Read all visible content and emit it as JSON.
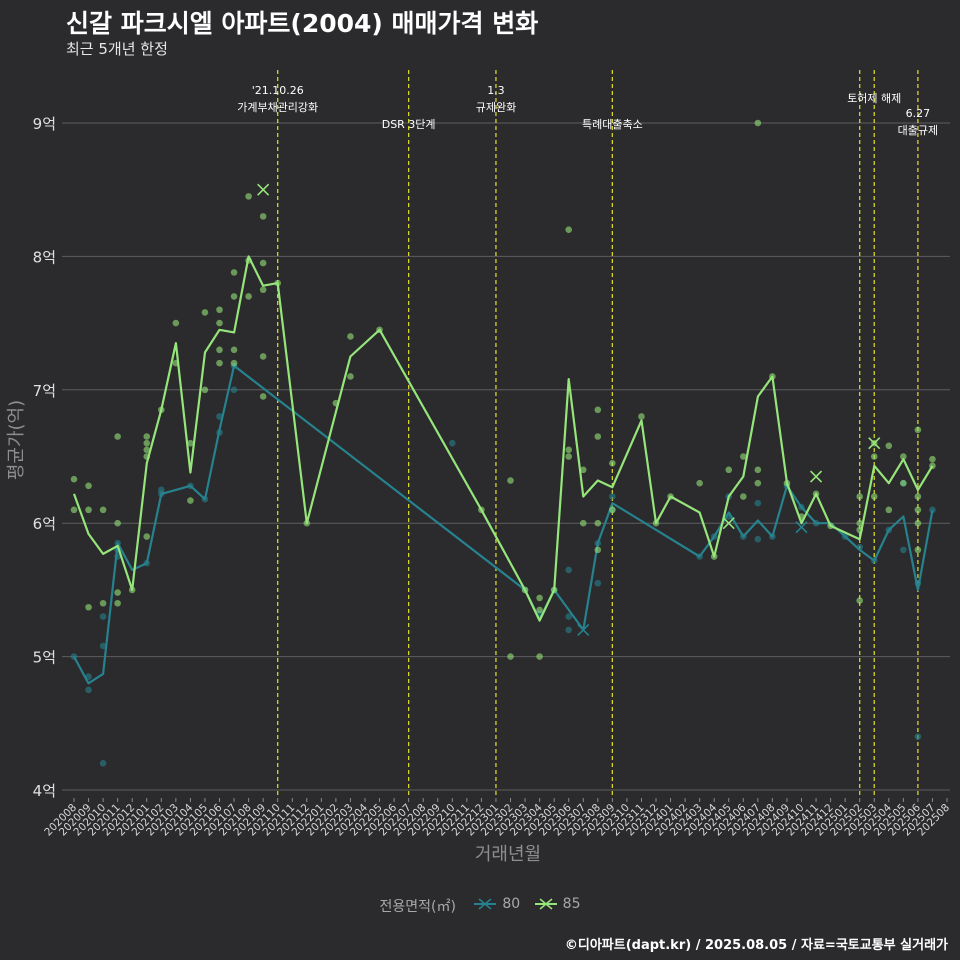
{
  "header": {
    "title": "신갈 파크시엘 아파트(2004) 매매가격 변화",
    "subtitle": "최근 5개년 한정"
  },
  "caption": "©디아파트(dapt.kr) / 2025.08.05 / 자료=국토교통부 실거래가",
  "legend": {
    "title": "전용면적(㎡)",
    "items": [
      {
        "label": "80",
        "color": "#26828e"
      },
      {
        "label": "85",
        "color": "#95e57a"
      }
    ]
  },
  "chart_data": {
    "type": "line",
    "xlabel": "거래년월",
    "ylabel": "평균가(억)",
    "ylim": [
      4,
      9.5
    ],
    "yticks": [
      4,
      5,
      6,
      7,
      8,
      9
    ],
    "ytick_labels": [
      "4억",
      "5억",
      "6억",
      "7억",
      "8억",
      "9억"
    ],
    "categories": [
      "202008",
      "202009",
      "202010",
      "202011",
      "202012",
      "202101",
      "202102",
      "202103",
      "202104",
      "202105",
      "202106",
      "202107",
      "202108",
      "202109",
      "202110",
      "202111",
      "202112",
      "202201",
      "202202",
      "202203",
      "202204",
      "202205",
      "202206",
      "202207",
      "202208",
      "202209",
      "202210",
      "202211",
      "202212",
      "202301",
      "202302",
      "202303",
      "202304",
      "202305",
      "202306",
      "202307",
      "202308",
      "202309",
      "202310",
      "202311",
      "202312",
      "202401",
      "202402",
      "202403",
      "202404",
      "202405",
      "202406",
      "202407",
      "202408",
      "202409",
      "202410",
      "202411",
      "202412",
      "202501",
      "202502",
      "202503",
      "202504",
      "202505",
      "202506",
      "202507",
      "202508"
    ],
    "series": [
      {
        "name": "80",
        "color": "#26828e",
        "line": [
          [
            0,
            5.0
          ],
          [
            1,
            4.8
          ],
          [
            2,
            4.87
          ],
          [
            3,
            5.85
          ],
          [
            4,
            5.65
          ],
          [
            5,
            5.7
          ],
          [
            6,
            6.22
          ],
          [
            7,
            6.25
          ],
          [
            8,
            6.28
          ],
          [
            9,
            6.18
          ],
          [
            10,
            6.7
          ],
          [
            11,
            7.18
          ],
          [
            31,
            5.5
          ],
          [
            32,
            5.28
          ],
          [
            33,
            5.5
          ],
          [
            35,
            5.2
          ],
          [
            36,
            5.85
          ],
          [
            37,
            6.15
          ],
          [
            43,
            5.75
          ],
          [
            44,
            5.9
          ],
          [
            45,
            6.08
          ],
          [
            46,
            5.9
          ],
          [
            47,
            6.02
          ],
          [
            48,
            5.9
          ],
          [
            49,
            6.28
          ],
          [
            50,
            6.12
          ],
          [
            51,
            6.0
          ],
          [
            52,
            6.0
          ],
          [
            53,
            5.9
          ],
          [
            54,
            5.8
          ],
          [
            55,
            5.72
          ],
          [
            56,
            5.95
          ],
          [
            57,
            6.05
          ],
          [
            58,
            5.5
          ],
          [
            59,
            6.1
          ]
        ],
        "points": [
          [
            0,
            5.0
          ],
          [
            1,
            4.85
          ],
          [
            1,
            4.75
          ],
          [
            2,
            4.2
          ],
          [
            2,
            5.08
          ],
          [
            2,
            5.3
          ],
          [
            3,
            5.75
          ],
          [
            3,
            5.8
          ],
          [
            3,
            5.85
          ],
          [
            5,
            5.7
          ],
          [
            6,
            6.22
          ],
          [
            6,
            6.25
          ],
          [
            8,
            6.28
          ],
          [
            9,
            6.18
          ],
          [
            10,
            6.8
          ],
          [
            10,
            6.68
          ],
          [
            11,
            7.0
          ],
          [
            11,
            7.18
          ],
          [
            26,
            6.6
          ],
          [
            31,
            5.5
          ],
          [
            32,
            5.32
          ],
          [
            33,
            5.5
          ],
          [
            34,
            5.65
          ],
          [
            34,
            5.3
          ],
          [
            34,
            5.2
          ],
          [
            36,
            5.85
          ],
          [
            36,
            5.55
          ],
          [
            37,
            6.2
          ],
          [
            37,
            6.1
          ],
          [
            43,
            5.75
          ],
          [
            44,
            5.9
          ],
          [
            45,
            6.2
          ],
          [
            45,
            6.05
          ],
          [
            46,
            5.9
          ],
          [
            47,
            6.15
          ],
          [
            47,
            5.88
          ],
          [
            48,
            5.9
          ],
          [
            49,
            6.28
          ],
          [
            50,
            6.12
          ],
          [
            51,
            6.0
          ],
          [
            53,
            5.9
          ],
          [
            54,
            5.82
          ],
          [
            55,
            5.72
          ],
          [
            56,
            5.95
          ],
          [
            57,
            6.3
          ],
          [
            57,
            5.8
          ],
          [
            58,
            5.55
          ],
          [
            58,
            4.4
          ],
          [
            59,
            6.1
          ]
        ],
        "crosses": [
          [
            35,
            5.2
          ],
          [
            50,
            5.97
          ]
        ]
      },
      {
        "name": "85",
        "color": "#95e57a",
        "line": [
          [
            0,
            6.22
          ],
          [
            1,
            5.92
          ],
          [
            2,
            5.77
          ],
          [
            3,
            5.83
          ],
          [
            4,
            5.5
          ],
          [
            5,
            6.45
          ],
          [
            6,
            6.85
          ],
          [
            7,
            7.35
          ],
          [
            8,
            6.38
          ],
          [
            9,
            7.28
          ],
          [
            10,
            7.45
          ],
          [
            11,
            7.43
          ],
          [
            12,
            8.0
          ],
          [
            13,
            7.78
          ],
          [
            14,
            7.8
          ],
          [
            16,
            6.0
          ],
          [
            19,
            7.25
          ],
          [
            21,
            7.45
          ],
          [
            28,
            6.1
          ],
          [
            31,
            5.5
          ],
          [
            32,
            5.27
          ],
          [
            33,
            5.5
          ],
          [
            34,
            7.08
          ],
          [
            35,
            6.2
          ],
          [
            36,
            6.32
          ],
          [
            37,
            6.27
          ],
          [
            39,
            6.77
          ],
          [
            40,
            6.0
          ],
          [
            41,
            6.2
          ],
          [
            43,
            6.08
          ],
          [
            44,
            5.75
          ],
          [
            45,
            6.2
          ],
          [
            46,
            6.35
          ],
          [
            47,
            6.95
          ],
          [
            48,
            7.1
          ],
          [
            49,
            6.3
          ],
          [
            50,
            6.0
          ],
          [
            51,
            6.22
          ],
          [
            52,
            5.98
          ],
          [
            54,
            5.88
          ],
          [
            55,
            6.43
          ],
          [
            56,
            6.3
          ],
          [
            57,
            6.48
          ],
          [
            58,
            6.25
          ],
          [
            59,
            6.43
          ]
        ],
        "points": [
          [
            0,
            6.33
          ],
          [
            0,
            6.1
          ],
          [
            1,
            6.1
          ],
          [
            1,
            6.28
          ],
          [
            1,
            5.37
          ],
          [
            2,
            5.4
          ],
          [
            2,
            6.1
          ],
          [
            3,
            6.65
          ],
          [
            3,
            6.0
          ],
          [
            3,
            5.48
          ],
          [
            3,
            5.4
          ],
          [
            4,
            5.5
          ],
          [
            5,
            6.65
          ],
          [
            5,
            6.6
          ],
          [
            5,
            6.55
          ],
          [
            5,
            6.5
          ],
          [
            5,
            5.9
          ],
          [
            6,
            6.85
          ],
          [
            7,
            7.5
          ],
          [
            7,
            7.2
          ],
          [
            8,
            6.6
          ],
          [
            8,
            6.17
          ],
          [
            9,
            7.58
          ],
          [
            9,
            7.0
          ],
          [
            10,
            7.6
          ],
          [
            10,
            7.5
          ],
          [
            10,
            7.3
          ],
          [
            10,
            7.2
          ],
          [
            11,
            7.88
          ],
          [
            11,
            7.7
          ],
          [
            11,
            7.3
          ],
          [
            11,
            7.2
          ],
          [
            12,
            8.45
          ],
          [
            12,
            7.97
          ],
          [
            12,
            7.7
          ],
          [
            13,
            8.3
          ],
          [
            13,
            7.95
          ],
          [
            13,
            7.75
          ],
          [
            13,
            7.25
          ],
          [
            13,
            6.95
          ],
          [
            14,
            7.8
          ],
          [
            16,
            6.0
          ],
          [
            18,
            6.9
          ],
          [
            19,
            7.4
          ],
          [
            19,
            7.1
          ],
          [
            21,
            7.45
          ],
          [
            28,
            6.1
          ],
          [
            30,
            6.32
          ],
          [
            30,
            5.0
          ],
          [
            31,
            5.5
          ],
          [
            32,
            5.44
          ],
          [
            32,
            5.35
          ],
          [
            32,
            5.0
          ],
          [
            33,
            5.5
          ],
          [
            34,
            8.2
          ],
          [
            34,
            6.55
          ],
          [
            34,
            6.5
          ],
          [
            35,
            6.4
          ],
          [
            35,
            6.0
          ],
          [
            36,
            6.85
          ],
          [
            36,
            6.65
          ],
          [
            36,
            6.0
          ],
          [
            36,
            5.8
          ],
          [
            37,
            6.45
          ],
          [
            37,
            6.1
          ],
          [
            39,
            6.8
          ],
          [
            40,
            6.0
          ],
          [
            41,
            6.2
          ],
          [
            43,
            6.3
          ],
          [
            44,
            5.75
          ],
          [
            45,
            6.4
          ],
          [
            46,
            6.5
          ],
          [
            46,
            6.2
          ],
          [
            47,
            9.0
          ],
          [
            47,
            6.4
          ],
          [
            47,
            6.3
          ],
          [
            48,
            7.1
          ],
          [
            49,
            6.3
          ],
          [
            50,
            6.05
          ],
          [
            51,
            6.22
          ],
          [
            52,
            5.98
          ],
          [
            54,
            6.2
          ],
          [
            54,
            6.0
          ],
          [
            54,
            5.95
          ],
          [
            54,
            5.42
          ],
          [
            55,
            6.6
          ],
          [
            55,
            6.5
          ],
          [
            55,
            6.2
          ],
          [
            56,
            6.58
          ],
          [
            56,
            6.1
          ],
          [
            57,
            6.5
          ],
          [
            57,
            6.3
          ],
          [
            58,
            6.7
          ],
          [
            58,
            6.2
          ],
          [
            58,
            6.1
          ],
          [
            58,
            6.0
          ],
          [
            58,
            5.8
          ],
          [
            59,
            6.48
          ],
          [
            59,
            6.43
          ]
        ],
        "crosses": [
          [
            13,
            8.5
          ],
          [
            45,
            6.0
          ],
          [
            51,
            6.35
          ],
          [
            55,
            6.6
          ]
        ]
      }
    ],
    "annotations": [
      {
        "x": 14,
        "lines": [
          "'21.10.26",
          "가계부채관리강화"
        ]
      },
      {
        "x": 23,
        "lines": [
          "DSR 3단계"
        ]
      },
      {
        "x": 29,
        "lines": [
          "1.3",
          "규제완화"
        ]
      },
      {
        "x": 37,
        "lines": [
          "특례대출축소"
        ]
      },
      {
        "x": 54,
        "lines": [
          ""
        ]
      },
      {
        "x": 55,
        "lines": [
          "토허제 해제"
        ]
      },
      {
        "x": 58,
        "lines": [
          "6.27",
          "대출규제"
        ]
      }
    ]
  }
}
